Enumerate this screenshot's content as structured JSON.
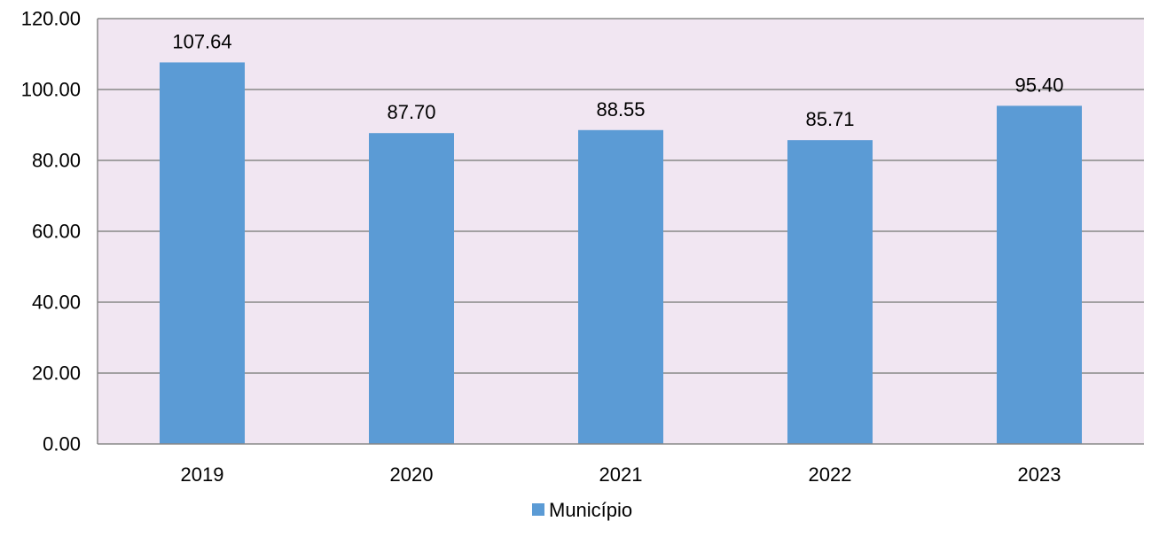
{
  "chart_data": {
    "type": "bar",
    "categories": [
      "2019",
      "2020",
      "2021",
      "2022",
      "2023"
    ],
    "series": [
      {
        "name": "Município",
        "values": [
          107.64,
          87.7,
          88.55,
          85.71,
          95.4
        ],
        "value_labels": [
          "107.64",
          "87.70",
          "88.55",
          "85.71",
          "95.40"
        ],
        "color": "#5b9bd5"
      }
    ],
    "title": "",
    "xlabel": "",
    "ylabel": "",
    "ylim": [
      0,
      120
    ],
    "yticks": [
      0,
      20,
      40,
      60,
      80,
      100,
      120
    ],
    "ytick_labels": [
      "0.00",
      "20.00",
      "40.00",
      "60.00",
      "80.00",
      "100.00",
      "120.00"
    ],
    "grid": true,
    "legend": "bottom",
    "plot_background": "#f1e6f2",
    "grid_color": "#888888"
  }
}
